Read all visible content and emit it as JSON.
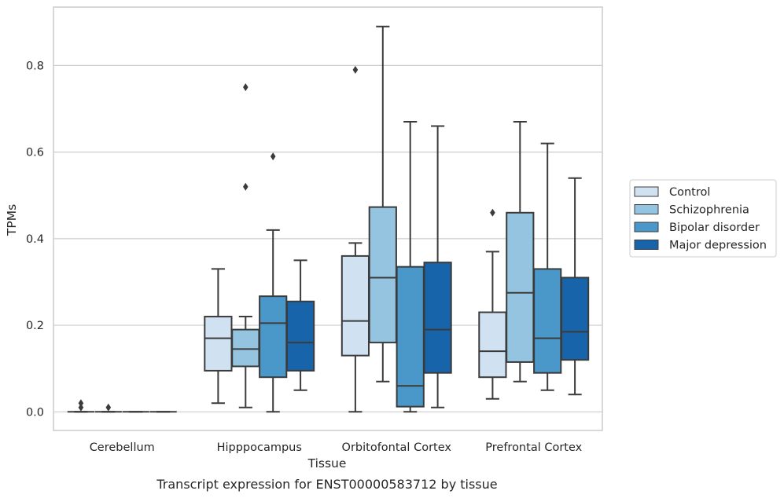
{
  "chart_data": {
    "type": "box",
    "title": "",
    "caption": "Transcript expression for ENST00000583712 by tissue",
    "xlabel": "Tissue",
    "ylabel": "TPMs",
    "ylim": [
      -0.043,
      0.935
    ],
    "yticks": [
      0.0,
      0.2,
      0.4,
      0.6,
      0.8
    ],
    "ytick_labels": [
      "0.0",
      "0.2",
      "0.4",
      "0.6",
      "0.8"
    ],
    "grid": true,
    "legend_position": "right",
    "categories": [
      "Cerebellum",
      "Hipppocampus",
      "Orbitofontal Cortex",
      "Prefrontal Cortex"
    ],
    "series": [
      {
        "name": "Control",
        "color": "#d0e1f2",
        "boxes": [
          {
            "whislo": 0.0,
            "q1": 0.0,
            "med": 0.0,
            "q3": 0.0,
            "whishi": 0.0,
            "fliers": [
              0.01,
              0.02
            ]
          },
          {
            "whislo": 0.02,
            "q1": 0.095,
            "med": 0.17,
            "q3": 0.22,
            "whishi": 0.33,
            "fliers": []
          },
          {
            "whislo": 0.0,
            "q1": 0.13,
            "med": 0.21,
            "q3": 0.36,
            "whishi": 0.39,
            "fliers": [
              0.79
            ]
          },
          {
            "whislo": 0.03,
            "q1": 0.08,
            "med": 0.14,
            "q3": 0.23,
            "whishi": 0.37,
            "fliers": [
              0.46
            ]
          }
        ]
      },
      {
        "name": "Schizophrenia",
        "color": "#94c4df",
        "boxes": [
          {
            "whislo": 0.0,
            "q1": 0.0,
            "med": 0.0,
            "q3": 0.0,
            "whishi": 0.0,
            "fliers": [
              0.01
            ]
          },
          {
            "whislo": 0.01,
            "q1": 0.105,
            "med": 0.145,
            "q3": 0.19,
            "whishi": 0.22,
            "fliers": [
              0.52,
              0.75
            ]
          },
          {
            "whislo": 0.07,
            "q1": 0.16,
            "med": 0.31,
            "q3": 0.473,
            "whishi": 0.89,
            "fliers": []
          },
          {
            "whislo": 0.07,
            "q1": 0.115,
            "med": 0.275,
            "q3": 0.46,
            "whishi": 0.67,
            "fliers": []
          }
        ]
      },
      {
        "name": "Bipolar disorder",
        "color": "#4a98c9",
        "boxes": [
          {
            "whislo": 0.0,
            "q1": 0.0,
            "med": 0.0,
            "q3": 0.0,
            "whishi": 0.0,
            "fliers": []
          },
          {
            "whislo": 0.0,
            "q1": 0.08,
            "med": 0.205,
            "q3": 0.267,
            "whishi": 0.42,
            "fliers": [
              0.59
            ]
          },
          {
            "whislo": 0.0,
            "q1": 0.012,
            "med": 0.06,
            "q3": 0.335,
            "whishi": 0.67,
            "fliers": []
          },
          {
            "whislo": 0.05,
            "q1": 0.09,
            "med": 0.17,
            "q3": 0.33,
            "whishi": 0.62,
            "fliers": []
          }
        ]
      },
      {
        "name": "Major depression",
        "color": "#1764ab",
        "boxes": [
          {
            "whislo": 0.0,
            "q1": 0.0,
            "med": 0.0,
            "q3": 0.0,
            "whishi": 0.0,
            "fliers": []
          },
          {
            "whislo": 0.05,
            "q1": 0.095,
            "med": 0.16,
            "q3": 0.255,
            "whishi": 0.35,
            "fliers": []
          },
          {
            "whislo": 0.01,
            "q1": 0.09,
            "med": 0.19,
            "q3": 0.345,
            "whishi": 0.66,
            "fliers": []
          },
          {
            "whislo": 0.04,
            "q1": 0.12,
            "med": 0.185,
            "q3": 0.31,
            "whishi": 0.54,
            "fliers": []
          }
        ]
      }
    ]
  }
}
